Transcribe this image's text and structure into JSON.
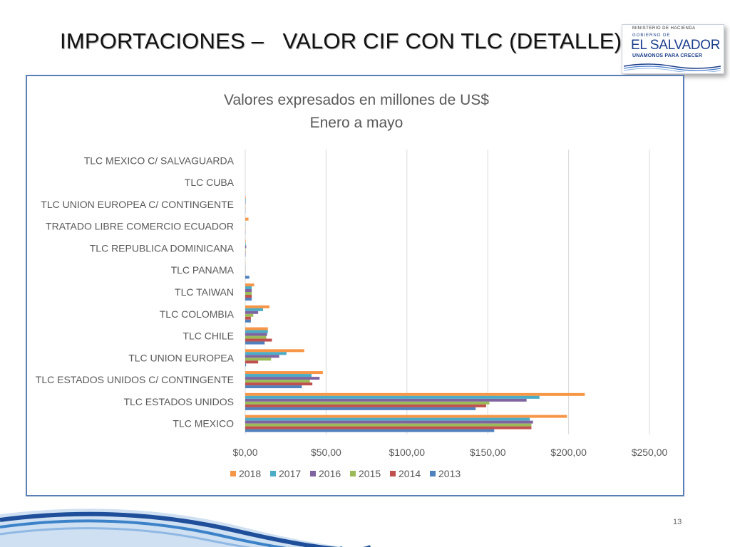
{
  "slide": {
    "title": "IMPORTACIONES –   VALOR CIF CON TLC (DETALLE)",
    "page_number": "13"
  },
  "logo": {
    "ministry": "MINISTERIO DE HACIENDA",
    "government_of": "GOBIERNO DE",
    "country": "EL SALVADOR",
    "motto": "UNÁMONOS PARA CRECER"
  },
  "chart_data": {
    "type": "bar",
    "orientation": "horizontal",
    "title": "Valores expresados en millones de US$",
    "subtitle": "Enero a mayo",
    "categories": [
      "TLC MEXICO C/ SALVAGUARDA",
      "TLC CUBA",
      "TLC UNION EUROPEA C/ CONTINGENTE",
      "TRATADO LIBRE COMERCIO ECUADOR",
      "TLC REPUBLICA DOMINICANA",
      "TLC PANAMA",
      "TLC TAIWAN",
      "TLC COLOMBIA",
      "TLC CHILE",
      "TLC UNION EUROPEA",
      "TLC ESTADOS UNIDOS C/ CONTINGENTE",
      "TLC ESTADOS UNIDOS",
      "TLC MEXICO"
    ],
    "series": [
      {
        "name": "2018",
        "color": "#F79646",
        "values": [
          0,
          0,
          0.3,
          2,
          0.3,
          0.1,
          5.5,
          15,
          14,
          36.5,
          48,
          210,
          199
        ]
      },
      {
        "name": "2017",
        "color": "#4BACC6",
        "values": [
          0,
          0,
          0.3,
          0.1,
          0.3,
          0.1,
          4,
          11,
          14,
          25.5,
          41,
          182,
          176
        ]
      },
      {
        "name": "2016",
        "color": "#8064A2",
        "values": [
          0,
          0,
          0.2,
          0.1,
          0.6,
          0.1,
          4,
          8,
          13.5,
          21,
          46,
          174,
          178
        ]
      },
      {
        "name": "2015",
        "color": "#9BBB59",
        "values": [
          0,
          0,
          0.1,
          0.1,
          0.2,
          0.1,
          4,
          5,
          13,
          16,
          40,
          151,
          177
        ]
      },
      {
        "name": "2014",
        "color": "#C0504D",
        "values": [
          0,
          0,
          0.1,
          0.1,
          0.2,
          0.1,
          4,
          3.5,
          16.5,
          8,
          41.5,
          149,
          177
        ]
      },
      {
        "name": "2013",
        "color": "#4F81BD",
        "values": [
          0,
          0,
          0.1,
          0.1,
          0.2,
          2.5,
          4,
          3.5,
          12,
          0.5,
          35,
          142.5,
          154
        ]
      }
    ],
    "x_ticks": [
      "$0,00",
      "$50,00",
      "$100,00",
      "$150,00",
      "$200,00",
      "$250,00"
    ],
    "xlim": [
      0,
      250
    ],
    "grid": true,
    "legend_position": "bottom"
  }
}
